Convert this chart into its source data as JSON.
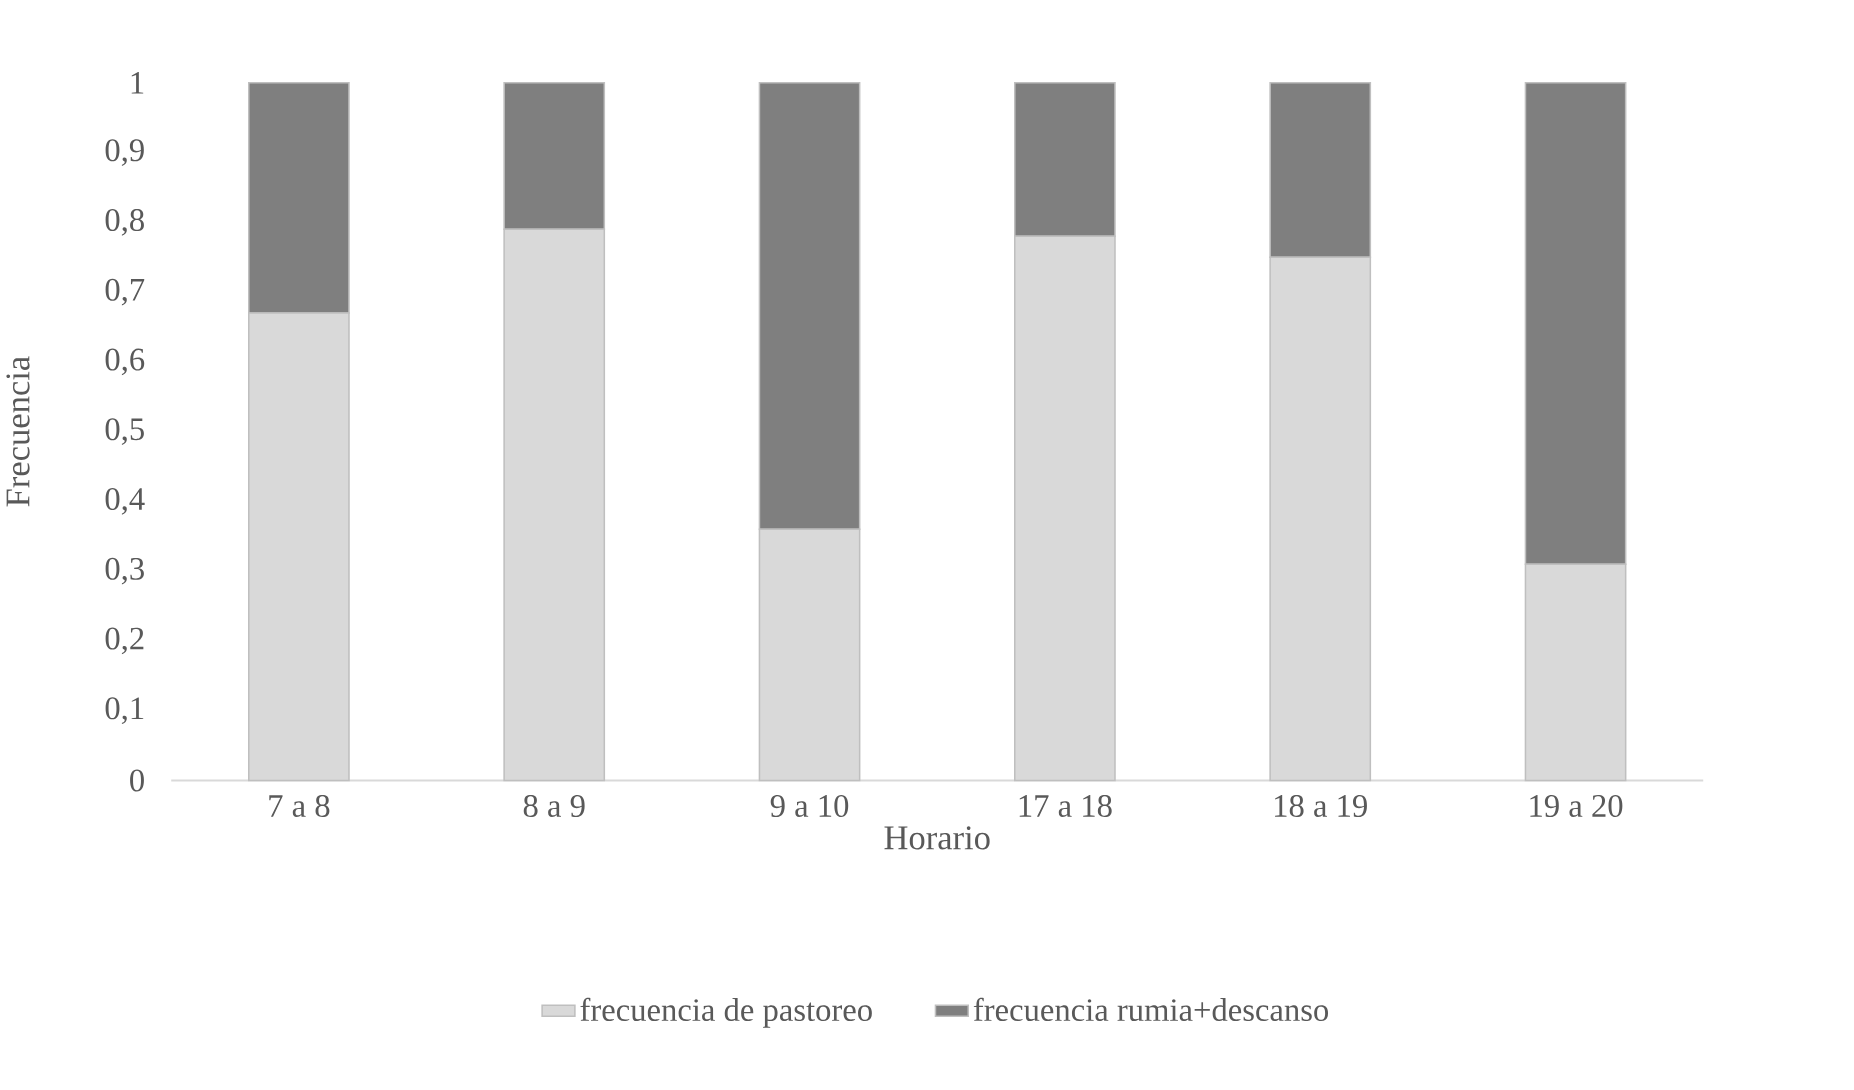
{
  "chart_data": {
    "type": "bar",
    "stacked": true,
    "xlabel": "Horario",
    "ylabel": "Frecuencia",
    "categories": [
      "7 a 8",
      "8 a 9",
      "9 a 10",
      "17 a 18",
      "18 a 19",
      "19 a 20"
    ],
    "series": [
      {
        "name": "frecuencia de pastoreo",
        "color": "#d9d9d9",
        "values": [
          0.67,
          0.79,
          0.36,
          0.78,
          0.75,
          0.31
        ]
      },
      {
        "name": "frecuencia rumia+descanso",
        "color": "#7f7f7f",
        "values": [
          0.33,
          0.21,
          0.64,
          0.22,
          0.25,
          0.69
        ]
      }
    ],
    "ylim": [
      0,
      1
    ],
    "yticks": [
      0,
      {
        "value": 0.1,
        "label": "0,1"
      },
      {
        "value": 0.2,
        "label": "0,2"
      },
      {
        "value": 0.3,
        "label": "0,3"
      },
      {
        "value": 0.4,
        "label": "0,4"
      },
      {
        "value": 0.5,
        "label": "0,5"
      },
      {
        "value": 0.6,
        "label": "0,6"
      },
      {
        "value": 0.7,
        "label": "0,7"
      },
      {
        "value": 0.8,
        "label": "0,8"
      },
      {
        "value": 0.9,
        "label": "0,9"
      },
      1
    ],
    "grid": false,
    "legend": "bottom"
  }
}
